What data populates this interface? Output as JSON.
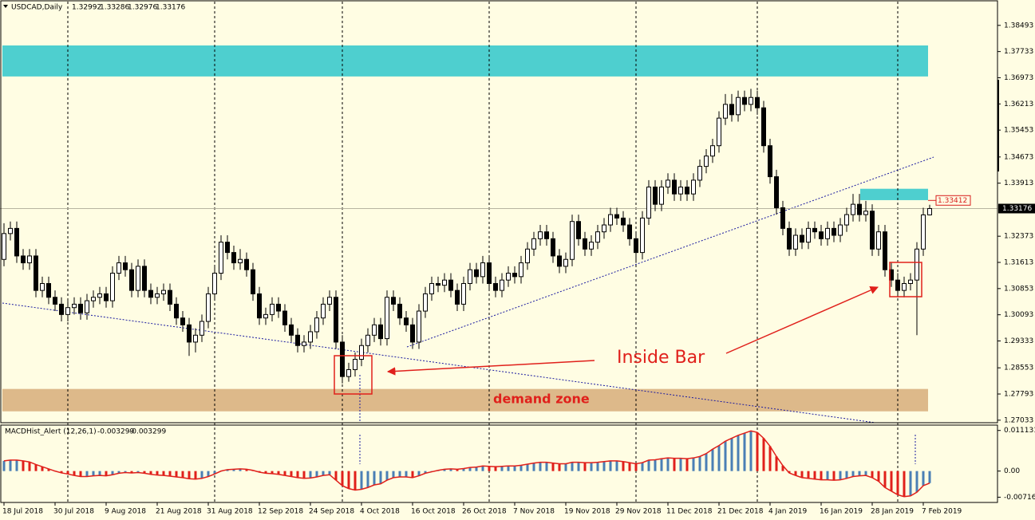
{
  "chart_data": [
    {
      "type": "candlestick",
      "symbol": "USDCAD,Daily",
      "categories": [
        "18 Jul 2018",
        null,
        null,
        null,
        null,
        null,
        null,
        null,
        "30 Jul 2018",
        null,
        null,
        null,
        null,
        null,
        null,
        null,
        "9 Aug 2018",
        null,
        null,
        null,
        null,
        null,
        null,
        null,
        "21 Aug 2018",
        null,
        null,
        null,
        null,
        null,
        null,
        null,
        "31 Aug 2018",
        null,
        null,
        null,
        null,
        null,
        null,
        null,
        "12 Sep 2018",
        null,
        null,
        null,
        null,
        null,
        null,
        null,
        "24 Sep 2018",
        null,
        null,
        null,
        null,
        null,
        null,
        null,
        "4 Oct 2018",
        null,
        null,
        null,
        null,
        null,
        null,
        null,
        "16 Oct 2018",
        null,
        null,
        null,
        null,
        null,
        null,
        null,
        "26 Oct 2018",
        null,
        null,
        null,
        null,
        null,
        null,
        null,
        "7 Nov 2018",
        null,
        null,
        null,
        null,
        null,
        null,
        null,
        "19 Nov 2018",
        null,
        null,
        null,
        null,
        null,
        null,
        null,
        "29 Nov 2018",
        null,
        null,
        null,
        null,
        null,
        null,
        null,
        "11 Dec 2018",
        null,
        null,
        null,
        null,
        null,
        null,
        null,
        "21 Dec 2018",
        null,
        null,
        null,
        null,
        null,
        null,
        null,
        "4 Jan 2019",
        null,
        null,
        null,
        null,
        null,
        null,
        null,
        "16 Jan 2019",
        null,
        null,
        null,
        null,
        null,
        null,
        null,
        "28 Jan 2019",
        null,
        null,
        null,
        null,
        null,
        null,
        null,
        "7 Feb 2019",
        null
      ],
      "open": [
        1.317,
        1.3245,
        1.326,
        1.318,
        1.316,
        1.318,
        1.308,
        1.31,
        1.306,
        1.304,
        1.301,
        1.303,
        1.304,
        1.3015,
        1.305,
        1.306,
        1.307,
        1.305,
        1.313,
        1.316,
        1.314,
        1.308,
        1.315,
        1.308,
        1.306,
        1.307,
        1.308,
        1.304,
        1.3,
        1.298,
        1.293,
        1.295,
        1.299,
        1.307,
        1.313,
        1.322,
        1.319,
        1.316,
        1.317,
        1.314,
        1.307,
        1.3,
        1.301,
        1.304,
        1.302,
        1.298,
        1.295,
        1.292,
        1.293,
        1.296,
        1.3,
        1.304,
        1.306,
        1.293,
        1.283,
        1.285,
        1.288,
        1.292,
        1.295,
        1.298,
        1.294,
        1.306,
        1.304,
        1.3,
        1.298,
        1.293,
        1.302,
        1.307,
        1.31,
        1.3095,
        1.311,
        1.308,
        1.304,
        1.31,
        1.314,
        1.312,
        1.316,
        1.31,
        1.308,
        1.311,
        1.313,
        1.312,
        1.316,
        1.32,
        1.323,
        1.325,
        1.323,
        1.318,
        1.315,
        1.317,
        1.328,
        1.323,
        1.32,
        1.322,
        1.325,
        1.327,
        1.33,
        1.329,
        1.327,
        1.323,
        1.319,
        1.329,
        1.338,
        1.333,
        1.338,
        1.34,
        1.336,
        1.338,
        1.336,
        1.34,
        1.344,
        1.347,
        1.35,
        1.358,
        1.362,
        1.359,
        1.364,
        1.362,
        1.364,
        1.361,
        1.35,
        1.341,
        1.332,
        1.326,
        1.32,
        1.324,
        1.322,
        1.326,
        1.325,
        1.323,
        1.326,
        1.324,
        1.327,
        1.33,
        1.333,
        1.33,
        1.331,
        1.32,
        1.325,
        1.314,
        1.311,
        1.308,
        1.31,
        1.311,
        1.32,
        1.32992
      ],
      "high": [
        1.3275,
        1.328,
        1.328,
        1.32,
        1.32,
        1.32,
        1.312,
        1.312,
        1.308,
        1.306,
        1.305,
        1.306,
        1.306,
        1.307,
        1.308,
        1.309,
        1.309,
        1.315,
        1.318,
        1.318,
        1.316,
        1.317,
        1.317,
        1.31,
        1.309,
        1.31,
        1.31,
        1.306,
        1.302,
        1.3,
        1.297,
        1.301,
        1.309,
        1.315,
        1.324,
        1.324,
        1.321,
        1.32,
        1.319,
        1.316,
        1.309,
        1.303,
        1.306,
        1.306,
        1.304,
        1.3,
        1.297,
        1.295,
        1.298,
        1.302,
        1.306,
        1.308,
        1.308,
        1.295,
        1.287,
        1.29,
        1.294,
        1.297,
        1.3,
        1.3,
        1.308,
        1.308,
        1.306,
        1.302,
        1.3,
        1.304,
        1.309,
        1.312,
        1.312,
        1.313,
        1.313,
        1.31,
        1.312,
        1.316,
        1.316,
        1.318,
        1.318,
        1.312,
        1.313,
        1.315,
        1.315,
        1.318,
        1.322,
        1.325,
        1.327,
        1.327,
        1.325,
        1.32,
        1.319,
        1.33,
        1.33,
        1.325,
        1.324,
        1.327,
        1.329,
        1.332,
        1.332,
        1.331,
        1.329,
        1.325,
        1.331,
        1.34,
        1.34,
        1.34,
        1.342,
        1.342,
        1.34,
        1.34,
        1.342,
        1.346,
        1.349,
        1.352,
        1.36,
        1.365,
        1.365,
        1.366,
        1.366,
        1.3665,
        1.366,
        1.363,
        1.352,
        1.343,
        1.334,
        1.328,
        1.326,
        1.326,
        1.328,
        1.328,
        1.327,
        1.328,
        1.328,
        1.329,
        1.332,
        1.336,
        1.336,
        1.334,
        1.333,
        1.327,
        1.327,
        1.316,
        1.313,
        1.312,
        1.313,
        1.322,
        1.332,
        1.33286
      ],
      "low": [
        1.315,
        1.3225,
        1.316,
        1.314,
        1.314,
        1.306,
        1.306,
        1.304,
        1.302,
        1.299,
        1.299,
        1.301,
        1.2995,
        1.2995,
        1.303,
        1.304,
        1.303,
        1.303,
        1.311,
        1.312,
        1.306,
        1.306,
        1.306,
        1.304,
        1.304,
        1.305,
        1.302,
        1.298,
        1.296,
        1.289,
        1.29,
        1.293,
        1.297,
        1.305,
        1.311,
        1.317,
        1.314,
        1.314,
        1.312,
        1.305,
        1.298,
        1.298,
        1.299,
        1.3,
        1.296,
        1.293,
        1.29,
        1.29,
        1.291,
        1.294,
        1.298,
        1.302,
        1.291,
        1.281,
        1.2815,
        1.283,
        1.286,
        1.29,
        1.293,
        1.292,
        1.292,
        1.302,
        1.298,
        1.296,
        1.291,
        1.291,
        1.3,
        1.305,
        1.3075,
        1.3075,
        1.306,
        1.302,
        1.302,
        1.308,
        1.31,
        1.31,
        1.308,
        1.306,
        1.306,
        1.309,
        1.31,
        1.31,
        1.314,
        1.318,
        1.321,
        1.321,
        1.316,
        1.313,
        1.313,
        1.315,
        1.321,
        1.318,
        1.318,
        1.32,
        1.323,
        1.325,
        1.327,
        1.325,
        1.321,
        1.316,
        1.317,
        1.327,
        1.331,
        1.331,
        1.336,
        1.334,
        1.334,
        1.334,
        1.334,
        1.338,
        1.342,
        1.345,
        1.348,
        1.356,
        1.357,
        1.357,
        1.36,
        1.36,
        1.359,
        1.348,
        1.339,
        1.33,
        1.324,
        1.318,
        1.318,
        1.32,
        1.32,
        1.323,
        1.321,
        1.321,
        1.322,
        1.322,
        1.325,
        1.328,
        1.328,
        1.328,
        1.318,
        1.318,
        1.312,
        1.309,
        1.306,
        1.306,
        1.308,
        1.295,
        1.318,
        1.32976
      ],
      "close": [
        1.3245,
        1.326,
        1.318,
        1.316,
        1.318,
        1.308,
        1.31,
        1.306,
        1.304,
        1.301,
        1.303,
        1.304,
        1.3015,
        1.305,
        1.306,
        1.307,
        1.305,
        1.313,
        1.316,
        1.314,
        1.308,
        1.315,
        1.308,
        1.306,
        1.307,
        1.308,
        1.304,
        1.3,
        1.298,
        1.293,
        1.295,
        1.299,
        1.307,
        1.313,
        1.322,
        1.319,
        1.316,
        1.317,
        1.314,
        1.307,
        1.3,
        1.301,
        1.304,
        1.302,
        1.298,
        1.295,
        1.292,
        1.293,
        1.296,
        1.3,
        1.304,
        1.306,
        1.293,
        1.283,
        1.285,
        1.288,
        1.292,
        1.295,
        1.298,
        1.294,
        1.306,
        1.304,
        1.3,
        1.298,
        1.293,
        1.302,
        1.307,
        1.31,
        1.3095,
        1.311,
        1.308,
        1.304,
        1.31,
        1.314,
        1.312,
        1.316,
        1.31,
        1.308,
        1.311,
        1.313,
        1.312,
        1.316,
        1.32,
        1.323,
        1.325,
        1.323,
        1.318,
        1.315,
        1.317,
        1.328,
        1.323,
        1.32,
        1.322,
        1.325,
        1.327,
        1.33,
        1.329,
        1.327,
        1.323,
        1.319,
        1.329,
        1.338,
        1.333,
        1.338,
        1.34,
        1.336,
        1.338,
        1.336,
        1.34,
        1.344,
        1.347,
        1.35,
        1.358,
        1.362,
        1.359,
        1.364,
        1.362,
        1.364,
        1.361,
        1.35,
        1.341,
        1.332,
        1.326,
        1.32,
        1.324,
        1.322,
        1.326,
        1.325,
        1.323,
        1.326,
        1.324,
        1.327,
        1.33,
        1.333,
        1.33,
        1.331,
        1.32,
        1.325,
        1.314,
        1.311,
        1.308,
        1.31,
        1.311,
        1.32,
        1.32992,
        1.33176
      ],
      "up_color": "#ffffff",
      "down_color": "#000000",
      "wick_color": "#000000",
      "ylim": [
        1.2696,
        1.3916
      ],
      "yticks": [
        1.38493,
        1.37733,
        1.36973,
        1.36213,
        1.35453,
        1.34673,
        1.33913,
        1.32373,
        1.31613,
        1.30853,
        1.30093,
        1.29333,
        1.28553,
        1.27793,
        1.27033
      ],
      "zones": [
        {
          "range": [
            1.3701,
            1.3791
          ],
          "color": "#4ecfcf"
        },
        {
          "range": [
            1.3342,
            1.3375
          ],
          "color": "#4ecfcf"
        },
        {
          "range": [
            1.2729,
            1.2794
          ],
          "color": "#ddb98a"
        }
      ],
      "level": 1.33412,
      "level_color": "#d81e1e",
      "annotations": [
        {
          "text": "Inside Bar"
        },
        {
          "text": "demand zone"
        }
      ]
    },
    {
      "type": "histogram",
      "title": "MACDHist_Alert (12,26,1)",
      "values": [
        0.0028,
        0.003,
        0.003,
        0.0028,
        0.0025,
        0.0018,
        0.0012,
        0.0006,
        0,
        -0.0005,
        -0.0008,
        -0.0012,
        -0.0015,
        -0.0015,
        -0.0013,
        -0.0012,
        -0.0013,
        -0.001,
        -0.0006,
        -0.0004,
        -0.0005,
        -0.0004,
        -0.0006,
        -0.0009,
        -0.0011,
        -0.0012,
        -0.0014,
        -0.0016,
        -0.0018,
        -0.0021,
        -0.0022,
        -0.002,
        -0.0015,
        -0.0008,
        0,
        0.0004,
        0.0005,
        0.0006,
        0.0005,
        0.0002,
        -0.0003,
        -0.0006,
        -0.0007,
        -0.0009,
        -0.0012,
        -0.0015,
        -0.0018,
        -0.002,
        -0.0019,
        -0.0016,
        -0.0012,
        -0.001,
        -0.0025,
        -0.004,
        -0.0048,
        -0.0052,
        -0.005,
        -0.0045,
        -0.0038,
        -0.0035,
        -0.0025,
        -0.0018,
        -0.0016,
        -0.0016,
        -0.0018,
        -0.0013,
        -0.0006,
        -0.0002,
        0.0002,
        0.0005,
        0.0006,
        0.0005,
        0.0007,
        0.001,
        0.0011,
        0.0014,
        0.0013,
        0.0012,
        0.0013,
        0.0014,
        0.0014,
        0.0016,
        0.0019,
        0.0022,
        0.0024,
        0.0024,
        0.0022,
        0.002,
        0.002,
        0.0024,
        0.0024,
        0.0023,
        0.0023,
        0.0024,
        0.0026,
        0.0028,
        0.0028,
        0.0026,
        0.0023,
        0.002,
        0.0023,
        0.003,
        0.0031,
        0.0034,
        0.0036,
        0.0035,
        0.0035,
        0.0034,
        0.0036,
        0.004,
        0.0048,
        0.006,
        0.007,
        0.0082,
        0.009,
        0.0098,
        0.0104,
        0.011,
        0.0106,
        0.009,
        0.0068,
        0.004,
        0.0015,
        -0.0005,
        -0.0012,
        -0.0018,
        -0.002,
        -0.0022,
        -0.0024,
        -0.0024,
        -0.0025,
        -0.0024,
        -0.002,
        -0.0015,
        -0.0013,
        -0.0012,
        -0.0018,
        -0.0028,
        -0.0045,
        -0.0055,
        -0.0065,
        -0.007,
        -0.0068,
        -0.0058,
        -0.004,
        -0.003299
      ],
      "up_color": "#4a7fb5",
      "down_color": "#e0201b",
      "line_color": "#e0201b",
      "ylim": [
        -0.0086,
        0.0126
      ],
      "yticks": [
        0.011131,
        {
          "value": 0,
          "label": "0.00"
        },
        -0.00716
      ]
    }
  ]
}
